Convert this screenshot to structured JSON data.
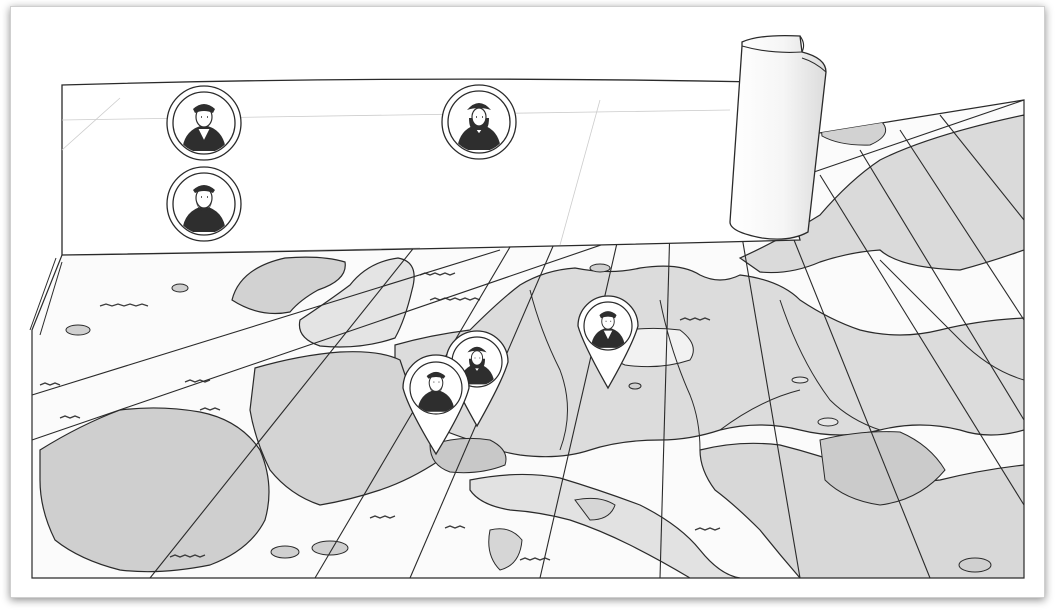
{
  "scene": {
    "banner": {
      "portraits": [
        {
          "icon": "reformer-portrait-1"
        },
        {
          "icon": "reformer-portrait-2"
        },
        {
          "icon": "reformer-portrait-3"
        }
      ]
    },
    "map": {
      "pins": [
        {
          "icon": "reformer-pin-portrait-1"
        },
        {
          "icon": "reformer-pin-portrait-2"
        },
        {
          "icon": "reformer-pin-portrait-3"
        }
      ]
    }
  },
  "colors": {
    "land": "#d2d2d2",
    "land_light": "#e6e6e6",
    "outline": "#2a2a2a",
    "paper": "#ffffff"
  }
}
